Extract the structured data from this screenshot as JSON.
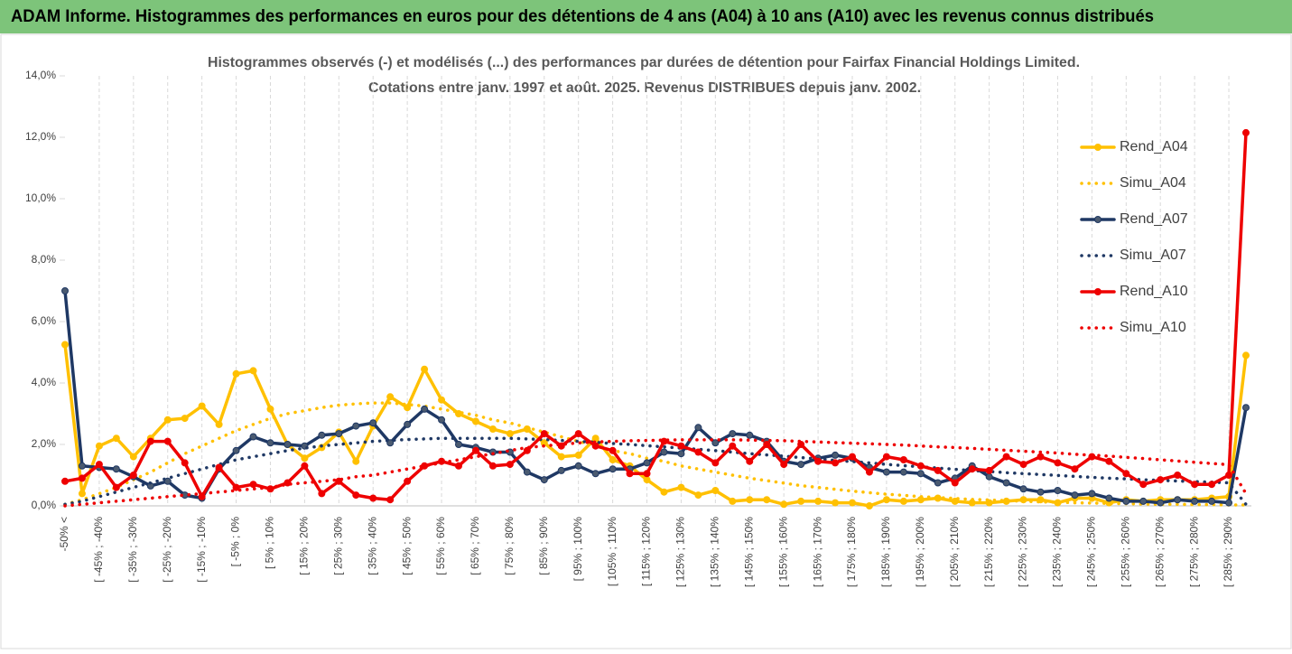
{
  "chart_data": {
    "type": "line",
    "title": "ADAM Informe. Histogrammes des performances en euros pour des détentions de 4 ans (A04) à 10 ans (A10) avec les revenus connus distribués",
    "subtitle": [
      "Histogrammes observés (-) et modélisés (...) des performances par durées de détention pour Fairfax Financial Holdings Limited.",
      "Cotations entre janv. 1997 et août. 2025. Revenus DISTRIBUES depuis janv. 2002."
    ],
    "categories": [
      "-50% <",
      null,
      "[ -45% ; -40%",
      null,
      "[ -35% ; -30%",
      null,
      "[ -25% ; -20%",
      null,
      "[ -15% ; -10%",
      null,
      "[ -5% ; 0%",
      null,
      "[ 5% ; 10%",
      null,
      "[ 15% ; 20%",
      null,
      "[ 25% ; 30%",
      null,
      "[ 35% ; 40%",
      null,
      "[ 45% ; 50%",
      null,
      "[ 55% ; 60%",
      null,
      "[ 65% ; 70%",
      null,
      "[ 75% ; 80%",
      null,
      "[ 85% ; 90%",
      null,
      "[ 95% ; 100%",
      null,
      "[ 105% ; 110%",
      null,
      "[ 115% ; 120%",
      null,
      "[ 125% ; 130%",
      null,
      "[ 135% ; 140%",
      null,
      "[ 145% ; 150%",
      null,
      "[ 155% ; 160%",
      null,
      "[ 165% ; 170%",
      null,
      "[ 175% ; 180%",
      null,
      "[ 185% ; 190%",
      null,
      "[ 195% ; 200%",
      null,
      "[ 205% ; 210%",
      null,
      "[ 215% ; 220%",
      null,
      "[ 225% ; 230%",
      null,
      "[ 235% ; 240%",
      null,
      "[ 245% ; 250%",
      null,
      "[ 255% ; 260%",
      null,
      "[ 265% ; 270%",
      null,
      "[ 275% ; 280%",
      null,
      "[ 285% ; 290%",
      null
    ],
    "series": [
      {
        "name": "Rend_A04",
        "color": "#ffc000",
        "style": "solid",
        "values": [
          5.25,
          0.4,
          1.95,
          2.2,
          1.6,
          2.2,
          2.8,
          2.85,
          3.25,
          2.65,
          4.3,
          4.4,
          3.15,
          2.0,
          1.55,
          1.9,
          2.4,
          1.45,
          2.6,
          3.55,
          3.2,
          4.45,
          3.45,
          3.0,
          2.75,
          2.5,
          2.35,
          2.5,
          2.05,
          1.6,
          1.65,
          2.2,
          1.5,
          1.3,
          0.85,
          0.45,
          0.6,
          0.35,
          0.5,
          0.15,
          0.2,
          0.2,
          0.05,
          0.15,
          0.15,
          0.1,
          0.1,
          0.0,
          0.2,
          0.15,
          0.2,
          0.25,
          0.15,
          0.1,
          0.1,
          0.15,
          0.2,
          0.2,
          0.1,
          0.25,
          0.25,
          0.1,
          0.2,
          0.15,
          0.2,
          0.2,
          0.2,
          0.25,
          0.3,
          4.9
        ]
      },
      {
        "name": "Simu_A04",
        "color": "#ffc000",
        "style": "dotted",
        "values": [
          0.05,
          0.2,
          0.4,
          0.6,
          0.85,
          1.1,
          1.4,
          1.7,
          1.95,
          2.2,
          2.45,
          2.65,
          2.85,
          3.0,
          3.1,
          3.2,
          3.28,
          3.32,
          3.35,
          3.35,
          3.3,
          3.25,
          3.15,
          3.05,
          2.95,
          2.8,
          2.7,
          2.55,
          2.4,
          2.25,
          2.1,
          1.95,
          1.8,
          1.7,
          1.55,
          1.45,
          1.3,
          1.2,
          1.1,
          1.0,
          0.9,
          0.82,
          0.74,
          0.66,
          0.6,
          0.54,
          0.48,
          0.43,
          0.38,
          0.34,
          0.3,
          0.27,
          0.24,
          0.21,
          0.19,
          0.17,
          0.15,
          0.13,
          0.12,
          0.1,
          0.09,
          0.08,
          0.07,
          0.06,
          0.05,
          0.05,
          0.04,
          0.04,
          0.03,
          0.03
        ]
      },
      {
        "name": "Rend_A07",
        "color": "#1f3864",
        "style": "solid",
        "values": [
          7.0,
          1.3,
          1.25,
          1.2,
          0.95,
          0.65,
          0.8,
          0.35,
          0.25,
          1.2,
          1.8,
          2.25,
          2.05,
          2.0,
          1.95,
          2.3,
          2.35,
          2.6,
          2.7,
          2.05,
          2.65,
          3.15,
          2.8,
          2.0,
          1.9,
          1.75,
          1.75,
          1.1,
          0.85,
          1.15,
          1.3,
          1.05,
          1.2,
          1.2,
          1.4,
          1.75,
          1.7,
          2.55,
          2.05,
          2.35,
          2.3,
          2.1,
          1.45,
          1.35,
          1.55,
          1.65,
          1.55,
          1.25,
          1.1,
          1.1,
          1.05,
          0.75,
          0.9,
          1.3,
          0.95,
          0.75,
          0.55,
          0.45,
          0.5,
          0.35,
          0.4,
          0.25,
          0.15,
          0.15,
          0.1,
          0.2,
          0.15,
          0.15,
          0.1,
          3.2
        ]
      },
      {
        "name": "Simu_A07",
        "color": "#1f3864",
        "style": "dotted",
        "values": [
          0.05,
          0.15,
          0.3,
          0.45,
          0.6,
          0.75,
          0.9,
          1.05,
          1.2,
          1.35,
          1.5,
          1.6,
          1.7,
          1.8,
          1.88,
          1.95,
          2.0,
          2.05,
          2.1,
          2.13,
          2.16,
          2.18,
          2.2,
          2.2,
          2.2,
          2.2,
          2.2,
          2.18,
          2.16,
          2.13,
          2.1,
          2.07,
          2.03,
          2.0,
          1.96,
          1.92,
          1.88,
          1.84,
          1.8,
          1.75,
          1.7,
          1.66,
          1.62,
          1.57,
          1.53,
          1.48,
          1.44,
          1.4,
          1.35,
          1.31,
          1.27,
          1.23,
          1.19,
          1.15,
          1.12,
          1.08,
          1.05,
          1.02,
          0.99,
          0.96,
          0.93,
          0.9,
          0.88,
          0.85,
          0.83,
          0.81,
          0.79,
          0.77,
          0.75,
          0.05
        ]
      },
      {
        "name": "Rend_A10",
        "color": "#ee0000",
        "style": "solid",
        "values": [
          0.8,
          0.9,
          1.35,
          0.6,
          1.0,
          2.1,
          2.1,
          1.4,
          0.3,
          1.25,
          0.6,
          0.7,
          0.55,
          0.75,
          1.3,
          0.4,
          0.8,
          0.35,
          0.25,
          0.2,
          0.8,
          1.3,
          1.45,
          1.3,
          1.8,
          1.3,
          1.35,
          1.8,
          2.35,
          1.95,
          2.35,
          1.95,
          1.8,
          1.05,
          1.05,
          2.1,
          1.95,
          1.75,
          1.4,
          1.95,
          1.45,
          2.0,
          1.35,
          2.0,
          1.45,
          1.4,
          1.6,
          1.1,
          1.6,
          1.5,
          1.3,
          1.15,
          0.75,
          1.2,
          1.15,
          1.6,
          1.35,
          1.6,
          1.4,
          1.2,
          1.6,
          1.45,
          1.05,
          0.7,
          0.85,
          1.0,
          0.7,
          0.7,
          1.0,
          12.15
        ]
      },
      {
        "name": "Simu_A10",
        "color": "#ee0000",
        "style": "dotted",
        "values": [
          0.0,
          0.05,
          0.1,
          0.15,
          0.2,
          0.25,
          0.3,
          0.35,
          0.4,
          0.45,
          0.5,
          0.55,
          0.6,
          0.7,
          0.75,
          0.8,
          0.85,
          0.95,
          1.0,
          1.1,
          1.2,
          1.3,
          1.4,
          1.5,
          1.6,
          1.7,
          1.8,
          1.9,
          1.95,
          2.0,
          2.05,
          2.08,
          2.1,
          2.12,
          2.13,
          2.14,
          2.15,
          2.15,
          2.15,
          2.15,
          2.14,
          2.13,
          2.12,
          2.1,
          2.08,
          2.06,
          2.04,
          2.02,
          2.0,
          1.98,
          1.95,
          1.92,
          1.9,
          1.87,
          1.84,
          1.81,
          1.78,
          1.75,
          1.72,
          1.68,
          1.65,
          1.62,
          1.58,
          1.54,
          1.5,
          1.46,
          1.42,
          1.38,
          1.34,
          0.4
        ]
      }
    ],
    "ylim": [
      0,
      14
    ],
    "yticks": [
      {
        "value": 0,
        "label": "0,0%"
      },
      {
        "value": 2,
        "label": "2,0%"
      },
      {
        "value": 4,
        "label": "4,0%"
      },
      {
        "value": 6,
        "label": "6,0%"
      },
      {
        "value": 8,
        "label": "8,0%"
      },
      {
        "value": 10,
        "label": "10,0%"
      },
      {
        "value": 12,
        "label": "12,0%"
      },
      {
        "value": 14,
        "label": "14,0%"
      }
    ],
    "grid": true,
    "legend": "right"
  }
}
